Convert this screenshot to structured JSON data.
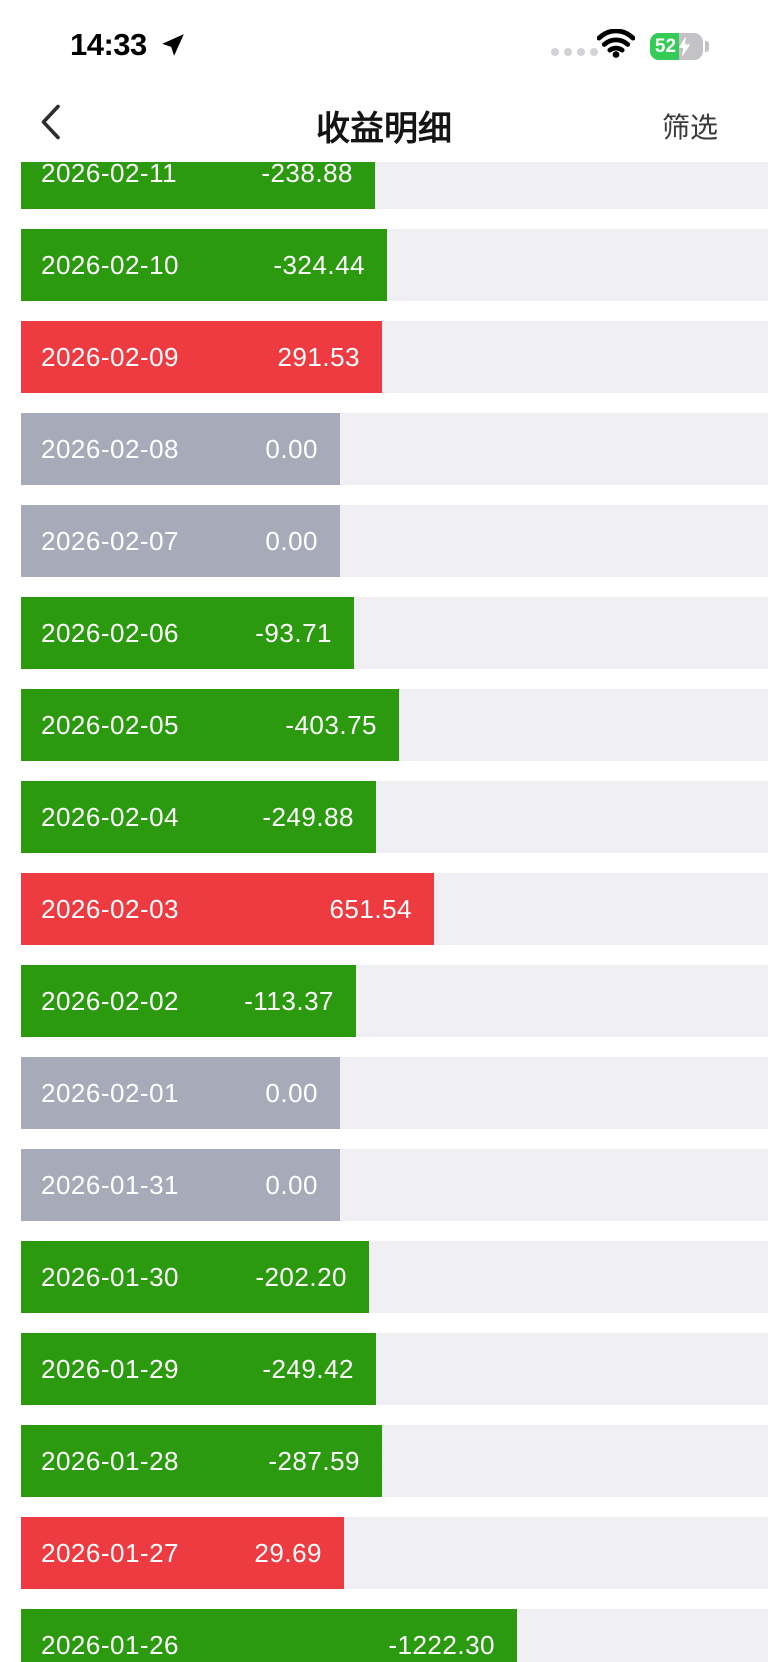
{
  "status_bar": {
    "time": "14:33",
    "battery_percent": "52"
  },
  "nav": {
    "title": "收益明细",
    "filter_label": "筛选"
  },
  "colors": {
    "positive_red": "#ee3b41",
    "negative_green": "#2b9a0e",
    "zero_gray": "#a7abb9",
    "track": "#efeff4",
    "battery_green": "#35cb57"
  },
  "rows": [
    {
      "date": "2026-02-11",
      "value": "-238.88"
    },
    {
      "date": "2026-02-10",
      "value": "-324.44"
    },
    {
      "date": "2026-02-09",
      "value": "291.53"
    },
    {
      "date": "2026-02-08",
      "value": "0.00"
    },
    {
      "date": "2026-02-07",
      "value": "0.00"
    },
    {
      "date": "2026-02-06",
      "value": "-93.71"
    },
    {
      "date": "2026-02-05",
      "value": "-403.75"
    },
    {
      "date": "2026-02-04",
      "value": "-249.88"
    },
    {
      "date": "2026-02-03",
      "value": "651.54"
    },
    {
      "date": "2026-02-02",
      "value": "-113.37"
    },
    {
      "date": "2026-02-01",
      "value": "0.00"
    },
    {
      "date": "2026-01-31",
      "value": "0.00"
    },
    {
      "date": "2026-01-30",
      "value": "-202.20"
    },
    {
      "date": "2026-01-29",
      "value": "-249.42"
    },
    {
      "date": "2026-01-28",
      "value": "-287.59"
    },
    {
      "date": "2026-01-27",
      "value": "29.69"
    },
    {
      "date": "2026-01-26",
      "value": "-1222.30"
    }
  ],
  "chart_data": {
    "type": "bar",
    "title": "收益明细",
    "categories": [
      "2026-02-11",
      "2026-02-10",
      "2026-02-09",
      "2026-02-08",
      "2026-02-07",
      "2026-02-06",
      "2026-02-05",
      "2026-02-04",
      "2026-02-03",
      "2026-02-02",
      "2026-02-01",
      "2026-01-31",
      "2026-01-30",
      "2026-01-29",
      "2026-01-28",
      "2026-01-27",
      "2026-01-26"
    ],
    "values": [
      -238.88,
      -324.44,
      291.53,
      0.0,
      0.0,
      -93.71,
      -403.75,
      -249.88,
      651.54,
      -113.37,
      0.0,
      0.0,
      -202.2,
      -249.42,
      -287.59,
      29.69,
      -1222.3
    ],
    "color_rule": "positive=red, negative=green, zero=gray",
    "orientation": "horizontal"
  }
}
